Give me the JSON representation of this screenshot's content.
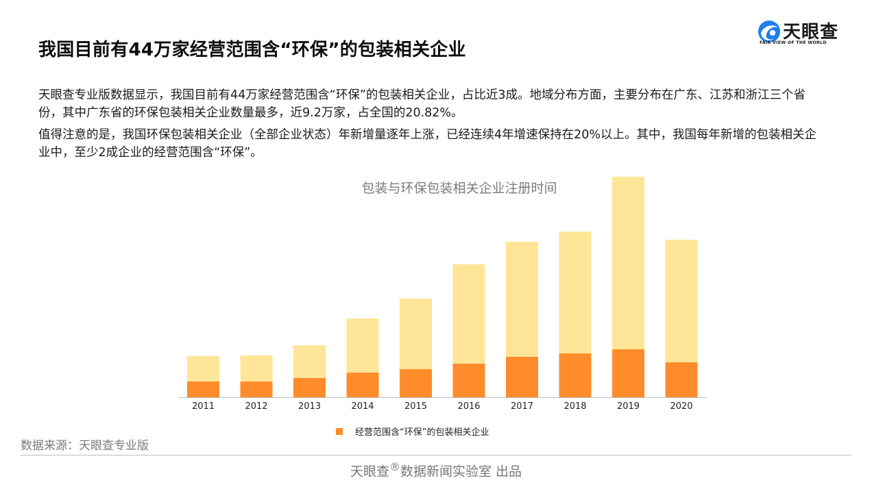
{
  "header": {
    "title": "我国目前有44万家经营范围含“环保”的包装相关企业",
    "logo_text": "天眼查",
    "logo_sub": "FAIR VIEW OF THE WORLD",
    "logo_icon": "tianyancha-logo-icon"
  },
  "body": {
    "paragraph1": "天眼查专业版数据显示，我国目前有44万家经营范围含“环保”的包装相关企业，占比近3成。地域分布方面，主要分布在广东、江苏和浙江三个省份，其中广东省的环保包装相关企业数量最多，近9.2万家，占全国的20.82%。",
    "paragraph2": "值得注意的是，我国环保包装相关企业（全部企业状态）年新增量逐年上涨，已经连续4年增速保持在20%以上。其中，我国每年新增的包装相关企业中，至少2成企业的经营范围含“环保”。"
  },
  "chart_data": {
    "type": "bar",
    "stacked": true,
    "title": "包装与环保包装相关企业注册时间",
    "categories": [
      "2011",
      "2012",
      "2013",
      "2014",
      "2015",
      "2016",
      "2017",
      "2018",
      "2019",
      "2020"
    ],
    "series": [
      {
        "name": "经营范围含“环保”的包装相关企业",
        "color": "#FF8C2A",
        "values": [
          23,
          23,
          28,
          36,
          41,
          49,
          59,
          64,
          70,
          51
        ]
      },
      {
        "color": "#FFE597",
        "values": [
          37,
          38,
          48,
          79,
          103,
          145,
          168,
          178,
          252,
          179
        ]
      }
    ],
    "ylim": [
      0,
      330
    ],
    "grid": false,
    "legend_position": "bottom"
  },
  "footer": {
    "source": "数据来源：天眼查专业版",
    "credit_brand": "天眼查",
    "credit_mark": "®",
    "credit_text": "数据新闻实验室 出品"
  }
}
